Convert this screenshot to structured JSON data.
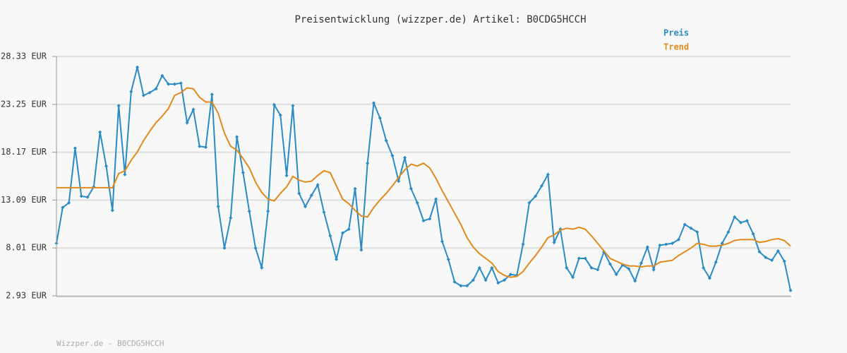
{
  "chart_data": {
    "type": "line",
    "title": "Preisentwicklung (wizzper.de) Artikel: B0CDG5HCCH",
    "footer": "Wizzper.de - B0CDG5HCCH",
    "ylim": [
      2.93,
      28.33
    ],
    "yticks": [
      {
        "value": 2.93,
        "label": "2.93 EUR"
      },
      {
        "value": 8.01,
        "label": "8.01 EUR"
      },
      {
        "value": 13.09,
        "label": "13.09 EUR"
      },
      {
        "value": 18.17,
        "label": "18.17 EUR"
      },
      {
        "value": 23.25,
        "label": "23.25 EUR"
      },
      {
        "value": 28.33,
        "label": "28.33 EUR"
      }
    ],
    "grid": true,
    "legend": "top-right",
    "series": [
      {
        "name": "Preis",
        "color": "#2a8ac4",
        "markers": true,
        "values": [
          8.5,
          12.3,
          12.8,
          18.6,
          13.5,
          13.4,
          14.5,
          20.3,
          16.7,
          12.0,
          23.1,
          15.8,
          24.6,
          27.2,
          24.2,
          24.5,
          24.9,
          26.3,
          25.4,
          25.4,
          25.5,
          21.3,
          22.7,
          18.8,
          18.7,
          24.3,
          12.4,
          8.0,
          11.2,
          19.8,
          16.0,
          11.9,
          8.0,
          5.9,
          11.9,
          23.2,
          22.1,
          15.7,
          23.1,
          13.8,
          12.4,
          13.6,
          14.7,
          11.8,
          9.3,
          6.8,
          9.6,
          10.0,
          14.3,
          7.8,
          17.0,
          23.4,
          21.8,
          19.4,
          17.8,
          15.1,
          17.6,
          14.3,
          12.8,
          10.9,
          11.1,
          13.2,
          8.7,
          6.8,
          4.4,
          4.0,
          4.0,
          4.6,
          5.9,
          4.6,
          5.9,
          4.3,
          4.6,
          5.2,
          5.1,
          8.4,
          12.8,
          13.5,
          14.6,
          15.8,
          8.6,
          10.0,
          5.9,
          4.9,
          6.9,
          6.9,
          5.9,
          5.7,
          7.6,
          6.3,
          5.2,
          6.2,
          5.8,
          4.5,
          6.4,
          8.1,
          5.7,
          8.3,
          8.4,
          8.5,
          8.9,
          10.5,
          10.1,
          9.7,
          5.9,
          4.8,
          6.5,
          8.5,
          9.7,
          11.3,
          10.7,
          10.9,
          9.5,
          7.6,
          7.0,
          6.7,
          7.7,
          6.6,
          3.5
        ]
      },
      {
        "name": "Trend",
        "color": "#e08a1e",
        "markers": false,
        "values": [
          14.4,
          14.4,
          14.4,
          14.4,
          14.4,
          14.4,
          14.4,
          14.4,
          14.4,
          14.4,
          15.9,
          16.2,
          17.3,
          18.2,
          19.4,
          20.4,
          21.3,
          22.0,
          22.8,
          24.2,
          24.5,
          25.0,
          24.9,
          24.0,
          23.5,
          23.5,
          22.3,
          20.2,
          18.8,
          18.4,
          17.5,
          16.5,
          15.0,
          13.9,
          13.2,
          13.0,
          13.8,
          14.5,
          15.6,
          15.2,
          15.0,
          15.1,
          15.7,
          16.2,
          16.0,
          14.6,
          13.2,
          12.7,
          12.0,
          11.4,
          11.3,
          12.3,
          13.1,
          13.8,
          14.6,
          15.5,
          16.3,
          16.9,
          16.7,
          17.0,
          16.5,
          15.4,
          14.1,
          12.9,
          11.7,
          10.5,
          9.1,
          8.1,
          7.4,
          6.9,
          6.4,
          5.5,
          5.1,
          4.9,
          5.0,
          5.5,
          6.4,
          7.2,
          8.1,
          9.1,
          9.4,
          9.9,
          10.1,
          10.0,
          10.2,
          10.0,
          9.3,
          8.5,
          7.7,
          6.9,
          6.6,
          6.3,
          6.1,
          6.1,
          6.0,
          6.1,
          6.1,
          6.5,
          6.6,
          6.7,
          7.2,
          7.6,
          8.0,
          8.5,
          8.4,
          8.2,
          8.2,
          8.3,
          8.5,
          8.8,
          8.9,
          8.9,
          8.9,
          8.6,
          8.7,
          8.9,
          9.0,
          8.8,
          8.2
        ]
      }
    ]
  }
}
